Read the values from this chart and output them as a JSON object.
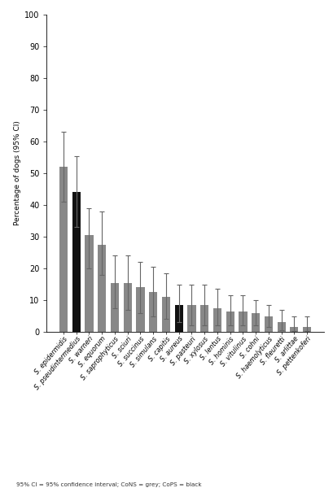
{
  "categories": [
    "S. epidermidis",
    "S. pseudintermedius",
    "S. warneri",
    "S. equorum",
    "S. saprophyticus",
    "S. sciuri",
    "S. succinus",
    "S. simulans",
    "S. capitis",
    "S. aureus",
    "S. pasteuri",
    "S. xylosus",
    "S. lentus",
    "S. hominis",
    "S. vitulinus",
    "S. cohni",
    "S. haemolyticus",
    "S. fleuretti",
    "S. arlittae",
    "S. pettenkoferi"
  ],
  "values": [
    52,
    44,
    30.5,
    27.5,
    15.5,
    15.5,
    14,
    12.5,
    11,
    8.5,
    8.5,
    8.5,
    7.5,
    6.5,
    6.5,
    6,
    5,
    3,
    1.5,
    1.5
  ],
  "ci_lower": [
    41,
    33,
    20,
    18,
    7.5,
    7,
    6,
    5,
    4,
    3,
    2,
    2,
    2,
    2,
    2,
    2,
    1.5,
    0.5,
    0.2,
    0.2
  ],
  "ci_upper": [
    63,
    55.5,
    39,
    38,
    24,
    24,
    22,
    20.5,
    18.5,
    15,
    15,
    15,
    13.5,
    11.5,
    11.5,
    10,
    8.5,
    7,
    5,
    5
  ],
  "colors": [
    "#888888",
    "#111111",
    "#888888",
    "#888888",
    "#888888",
    "#888888",
    "#888888",
    "#888888",
    "#888888",
    "#111111",
    "#888888",
    "#888888",
    "#888888",
    "#888888",
    "#888888",
    "#888888",
    "#888888",
    "#888888",
    "#888888",
    "#888888"
  ],
  "ylabel": "Percentage of dogs (95% CI)",
  "ylim": [
    0,
    100
  ],
  "yticks": [
    0,
    10,
    20,
    30,
    40,
    50,
    60,
    70,
    80,
    90,
    100
  ],
  "footnote": "95% CI = 95% confidence interval; CoNS = grey; CoPS = black",
  "background_color": "#ffffff",
  "fig_width": 4.1,
  "fig_height": 6.0,
  "dpi": 100
}
